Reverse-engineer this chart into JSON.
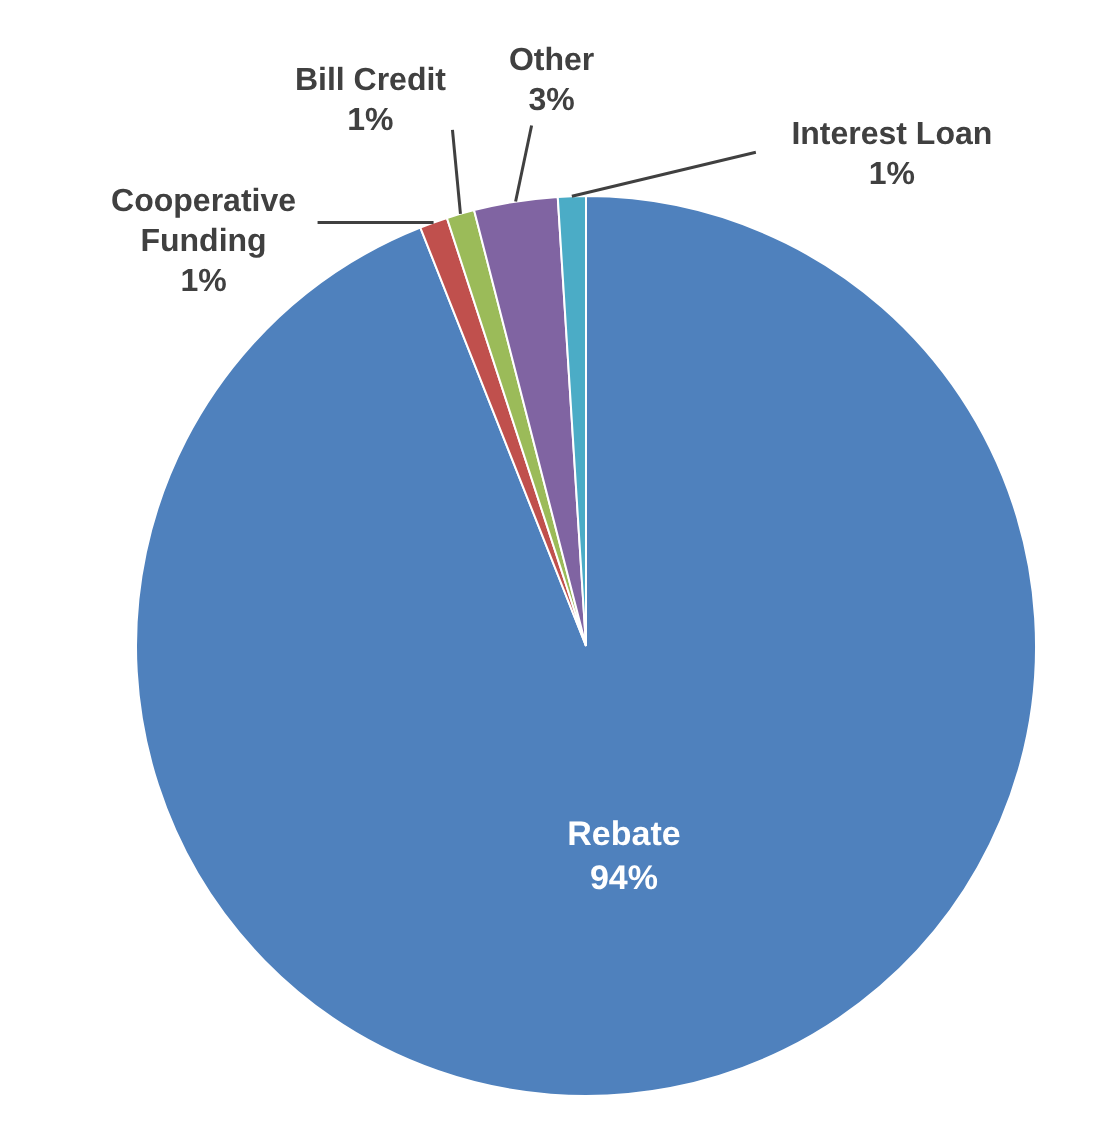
{
  "chart_data": {
    "type": "pie",
    "categories": [
      "Rebate",
      "Cooperative Funding",
      "Bill Credit",
      "Other",
      "Interest Loan"
    ],
    "values": [
      94,
      1,
      1,
      3,
      1
    ],
    "value_labels": [
      "94%",
      "1%",
      "1%",
      "3%",
      "1%"
    ],
    "colors": [
      "#4f81bd",
      "#c0504d",
      "#9bbb59",
      "#8064a2",
      "#4bacc6"
    ],
    "legend": false
  }
}
